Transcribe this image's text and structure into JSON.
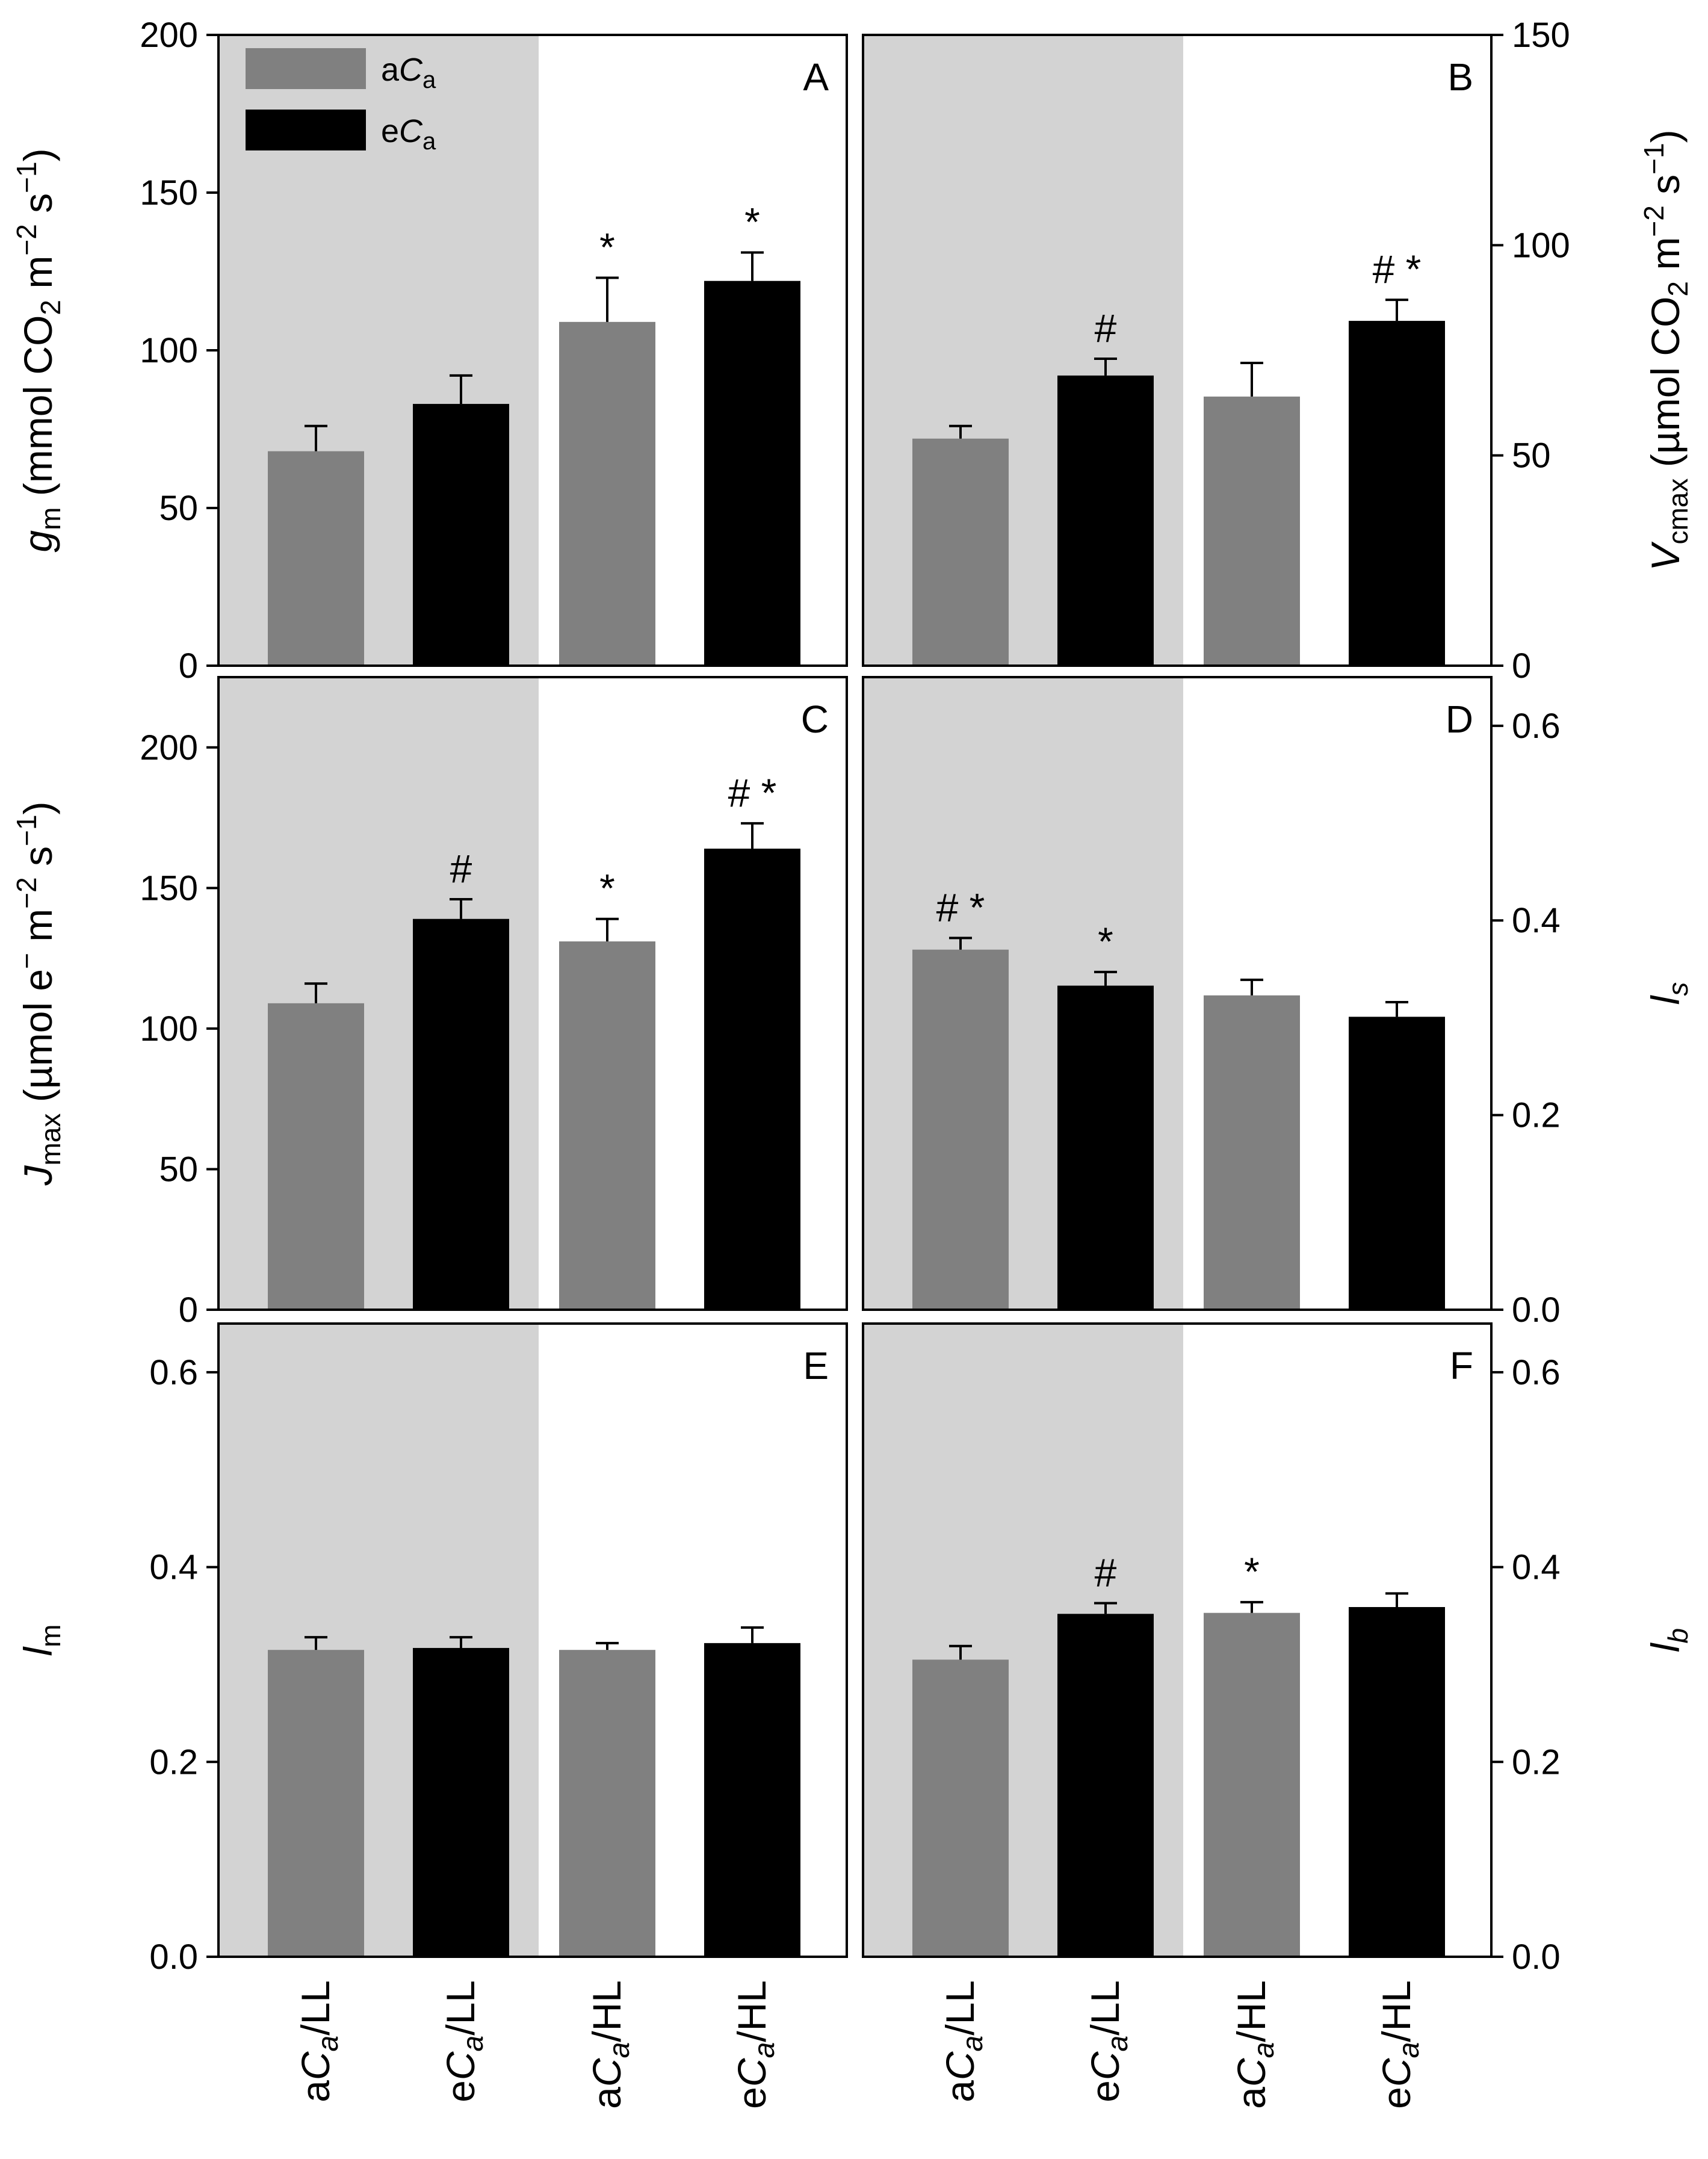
{
  "figure": {
    "type": "multi-panel bar chart",
    "categories": [
      "aC_a/LL",
      "eC_a/LL",
      "aC_a/HL",
      "eC_a/HL"
    ],
    "legend": [
      {
        "label": "aC_a",
        "color": "#808080"
      },
      {
        "label": "eC_a",
        "color": "#000000"
      }
    ],
    "colors": {
      "aCa_bar": "#808080",
      "eCa_bar": "#000000",
      "low_light_background": "#d3d3d3",
      "plot_background": "#ffffff"
    }
  },
  "chart_data": [
    {
      "type": "bar",
      "panel": "A",
      "ylabel": "g_m (mmol CO2 m^-2 s^-1)",
      "axis_side": "left",
      "ylim": [
        0,
        200
      ],
      "yticks": [
        0,
        50,
        100,
        150,
        200
      ],
      "categories": [
        "aC_a/LL",
        "eC_a/LL",
        "aC_a/HL",
        "eC_a/HL"
      ],
      "values": [
        68,
        83,
        109,
        122
      ],
      "errors": [
        8,
        9,
        14,
        9
      ],
      "annotations": [
        "",
        "",
        "*",
        "*"
      ]
    },
    {
      "type": "bar",
      "panel": "B",
      "ylabel": "V_cmax (µmol CO2 m^-2 s^-1)",
      "axis_side": "right",
      "ylim": [
        0,
        150
      ],
      "yticks": [
        0,
        50,
        100,
        150
      ],
      "categories": [
        "aC_a/LL",
        "eC_a/LL",
        "aC_a/HL",
        "eC_a/HL"
      ],
      "values": [
        54,
        69,
        64,
        82
      ],
      "errors": [
        3,
        4,
        8,
        5
      ],
      "annotations": [
        "",
        "#",
        "",
        "# *"
      ]
    },
    {
      "type": "bar",
      "panel": "C",
      "ylabel": "J_max (µmol e^- m^-2 s^-1)",
      "axis_side": "left",
      "ylim": [
        0,
        225
      ],
      "yticks": [
        0,
        50,
        100,
        150,
        200
      ],
      "categories": [
        "aC_a/LL",
        "eC_a/LL",
        "aC_a/HL",
        "eC_a/HL"
      ],
      "values": [
        109,
        139,
        131,
        164
      ],
      "errors": [
        7,
        7,
        8,
        9
      ],
      "annotations": [
        "",
        "#",
        "*",
        "# *"
      ]
    },
    {
      "type": "bar",
      "panel": "D",
      "ylabel": "l_s",
      "axis_side": "right",
      "ylim": [
        0,
        0.65
      ],
      "yticks": [
        "0.0",
        "0.2",
        "0.4",
        "0.6"
      ],
      "categories": [
        "aC_a/LL",
        "eC_a/LL",
        "aC_a/HL",
        "eC_a/HL"
      ],
      "values": [
        0.37,
        0.333,
        0.323,
        0.301
      ],
      "errors": [
        0.012,
        0.014,
        0.016,
        0.015
      ],
      "annotations": [
        "# *",
        "*",
        "",
        ""
      ]
    },
    {
      "type": "bar",
      "panel": "E",
      "ylabel": "l_m",
      "axis_side": "left",
      "ylim": [
        0,
        0.65
      ],
      "yticks": [
        "0.0",
        "0.2",
        "0.4",
        "0.6"
      ],
      "categories": [
        "aC_a/LL",
        "eC_a/LL",
        "aC_a/HL",
        "eC_a/HL"
      ],
      "values": [
        0.315,
        0.317,
        0.315,
        0.322
      ],
      "errors": [
        0.013,
        0.011,
        0.007,
        0.016
      ],
      "annotations": [
        "",
        "",
        "",
        ""
      ]
    },
    {
      "type": "bar",
      "panel": "F",
      "ylabel": "l_b",
      "axis_side": "right",
      "ylim": [
        0,
        0.65
      ],
      "yticks": [
        "0.0",
        "0.2",
        "0.4",
        "0.6"
      ],
      "categories": [
        "aC_a/LL",
        "eC_a/LL",
        "aC_a/HL",
        "eC_a/HL"
      ],
      "values": [
        0.305,
        0.352,
        0.353,
        0.359
      ],
      "errors": [
        0.014,
        0.011,
        0.011,
        0.014
      ],
      "annotations": [
        "",
        "#",
        "*",
        ""
      ]
    }
  ]
}
